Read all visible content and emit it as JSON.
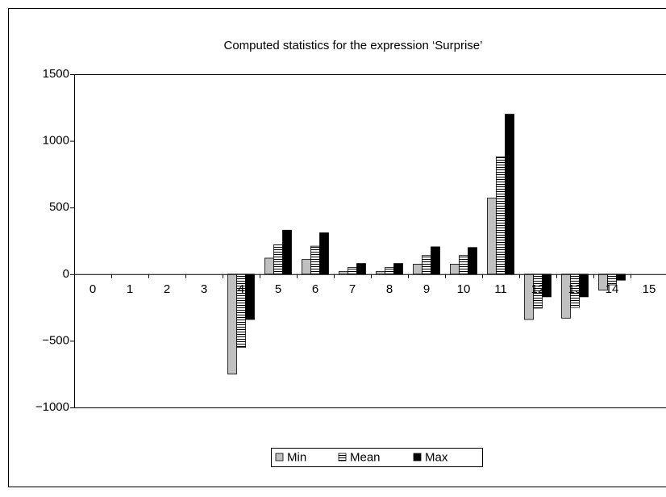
{
  "chart_data": {
    "type": "bar",
    "title": "Computed statistics for the expression ‘Surprise’",
    "categories": [
      "0",
      "1",
      "2",
      "3",
      "4",
      "5",
      "6",
      "7",
      "8",
      "9",
      "10",
      "11",
      "12",
      "13",
      "14",
      "15"
    ],
    "series": [
      {
        "name": "Min",
        "color": "#c0c0c0",
        "pattern": "solid",
        "values": [
          null,
          null,
          null,
          null,
          -750,
          120,
          110,
          20,
          20,
          75,
          75,
          570,
          -340,
          -330,
          -120,
          null
        ]
      },
      {
        "name": "Mean",
        "color": "#ffffff",
        "pattern": "horizontal-stripes",
        "values": [
          null,
          null,
          null,
          null,
          -550,
          220,
          210,
          50,
          50,
          140,
          140,
          880,
          -255,
          -250,
          -80,
          null
        ]
      },
      {
        "name": "Max",
        "color": "#000000",
        "pattern": "solid",
        "values": [
          null,
          null,
          null,
          null,
          -340,
          330,
          310,
          80,
          80,
          205,
          200,
          1200,
          -170,
          -170,
          -45,
          null
        ]
      }
    ],
    "ylim": [
      -1000,
      1500
    ],
    "yticks": [
      {
        "value": -1000,
        "label": "−1000"
      },
      {
        "value": -500,
        "label": "−500"
      },
      0,
      500,
      1000,
      1500
    ],
    "grid": false,
    "legend": "bottom"
  }
}
